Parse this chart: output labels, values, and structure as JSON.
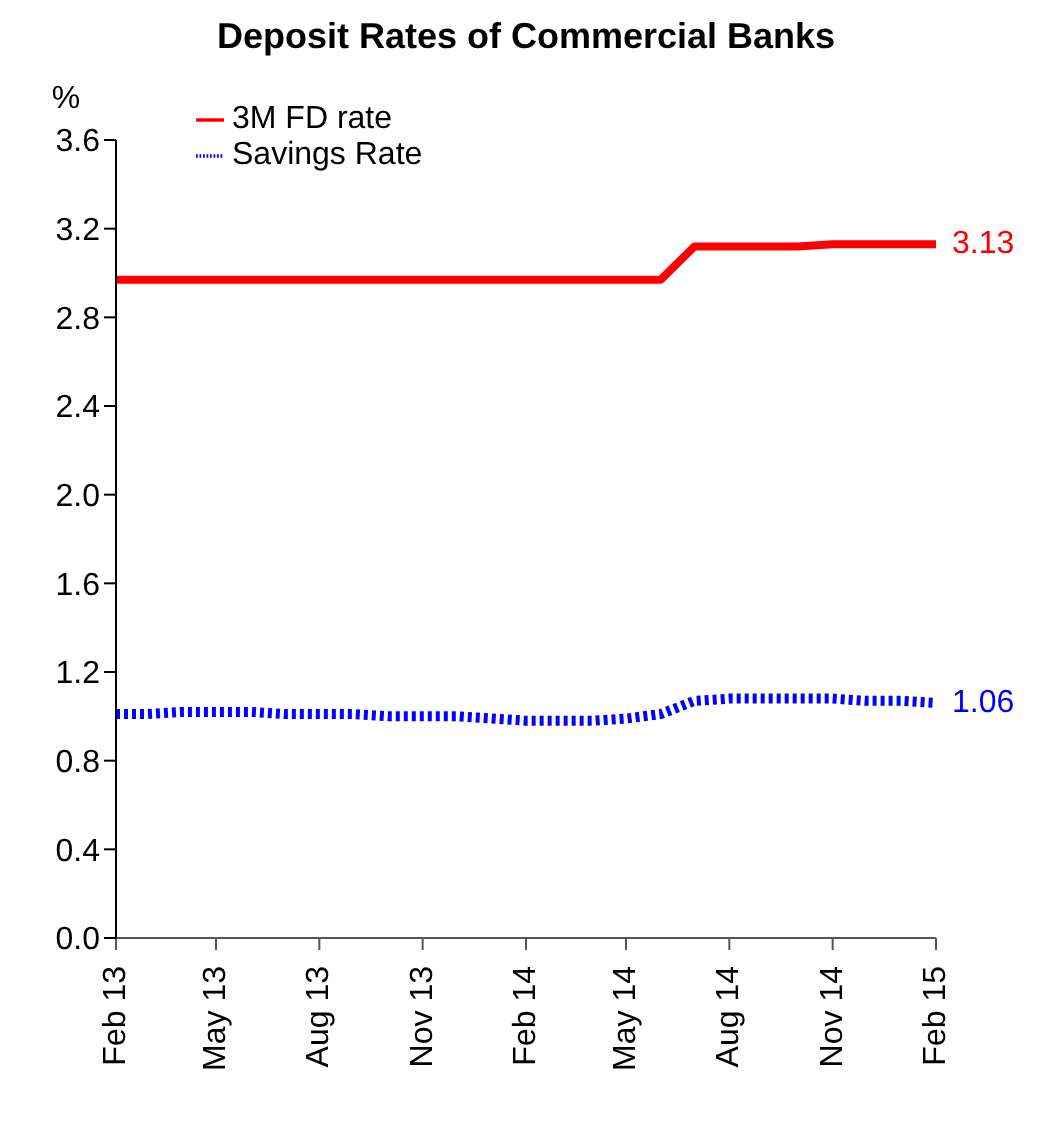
{
  "chart_data": {
    "type": "line",
    "title": "Deposit Rates of Commercial Banks",
    "ylabel": "%",
    "x": [
      "2013-02",
      "2013-03",
      "2013-04",
      "2013-05",
      "2013-06",
      "2013-07",
      "2013-08",
      "2013-09",
      "2013-10",
      "2013-11",
      "2013-12",
      "2014-01",
      "2014-02",
      "2014-03",
      "2014-04",
      "2014-05",
      "2014-06",
      "2014-07",
      "2014-08",
      "2014-09",
      "2014-10",
      "2014-11",
      "2014-12",
      "2015-01",
      "2015-02"
    ],
    "series": [
      {
        "name": "3M FD rate",
        "color": "#ff0000",
        "line_style": "solid",
        "values": [
          2.97,
          2.97,
          2.97,
          2.97,
          2.97,
          2.97,
          2.97,
          2.97,
          2.97,
          2.97,
          2.97,
          2.97,
          2.97,
          2.97,
          2.97,
          2.97,
          2.97,
          3.12,
          3.12,
          3.12,
          3.12,
          3.13,
          3.13,
          3.13,
          3.13
        ],
        "value_labels": [
          null,
          null,
          null,
          null,
          null,
          null,
          null,
          null,
          null,
          null,
          null,
          null,
          null,
          null,
          null,
          null,
          null,
          null,
          null,
          null,
          null,
          null,
          null,
          null,
          "3.13"
        ]
      },
      {
        "name": "Savings Rate",
        "color": "#0000ff",
        "line_style": "dotted",
        "values": [
          1.01,
          1.01,
          1.02,
          1.02,
          1.02,
          1.01,
          1.01,
          1.01,
          1.0,
          1.0,
          1.0,
          0.99,
          0.98,
          0.98,
          0.98,
          0.99,
          1.01,
          1.07,
          1.08,
          1.08,
          1.08,
          1.08,
          1.07,
          1.07,
          1.06
        ],
        "value_labels": [
          null,
          null,
          null,
          null,
          null,
          null,
          null,
          null,
          null,
          null,
          null,
          null,
          null,
          null,
          null,
          null,
          null,
          null,
          null,
          null,
          null,
          null,
          null,
          null,
          "1.06"
        ]
      }
    ],
    "xlim": [
      "2013-02",
      "2015-02"
    ],
    "xticks": [
      {
        "value": "2013-02",
        "label": "Feb 13"
      },
      {
        "value": "2013-05",
        "label": "May 13"
      },
      {
        "value": "2013-08",
        "label": "Aug 13"
      },
      {
        "value": "2013-11",
        "label": "Nov 13"
      },
      {
        "value": "2014-02",
        "label": "Feb 14"
      },
      {
        "value": "2014-05",
        "label": "May 14"
      },
      {
        "value": "2014-08",
        "label": "Aug 14"
      },
      {
        "value": "2014-11",
        "label": "Nov 14"
      },
      {
        "value": "2015-02",
        "label": "Feb 15"
      }
    ],
    "ylim": [
      0,
      3.6
    ],
    "yticks": [
      {
        "value": 0,
        "label": "0.0"
      },
      {
        "value": 0.4,
        "label": "0.4"
      },
      {
        "value": 0.8,
        "label": "0.8"
      },
      {
        "value": 1.2,
        "label": "1.2"
      },
      {
        "value": 1.6,
        "label": "1.6"
      },
      {
        "value": 2,
        "label": "2.0"
      },
      {
        "value": 2.4,
        "label": "2.4"
      },
      {
        "value": 2.8,
        "label": "2.8"
      },
      {
        "value": 3.2,
        "label": "3.2"
      },
      {
        "value": 3.6,
        "label": "3.6"
      }
    ],
    "grid": false,
    "legend": "top left",
    "marker": "none"
  }
}
